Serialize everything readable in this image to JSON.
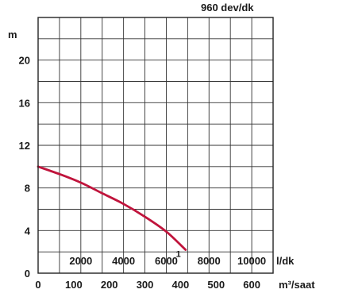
{
  "chart_data": {
    "type": "line",
    "title": "960 dev/dk",
    "ylabel": "m",
    "xlabel_primary": "l/dk",
    "xlabel_secondary": "m³/saat",
    "ylim": [
      0,
      24
    ],
    "xlim": [
      0,
      11000
    ],
    "yticks": [
      "0",
      "4",
      "8",
      "12",
      "16",
      "20"
    ],
    "yticks_values": [
      0,
      4,
      8,
      12,
      16,
      20
    ],
    "xticks_primary": [
      "2000",
      "4000",
      "6000",
      "8000",
      "10000"
    ],
    "xticks_primary_values": [
      2000,
      4000,
      6000,
      8000,
      10000
    ],
    "xticks_secondary": [
      "0",
      "100",
      "200",
      "300",
      "400",
      "500",
      "600"
    ],
    "xticks_secondary_values": [
      0,
      100,
      200,
      300,
      400,
      500,
      600
    ],
    "grid": true,
    "series": [
      {
        "name": "1",
        "color": "#c0143c",
        "x": [
          0,
          1000,
          2000,
          3000,
          4000,
          5000,
          6000,
          6900
        ],
        "y": [
          10.0,
          9.3,
          8.5,
          7.5,
          6.5,
          5.3,
          3.9,
          2.2
        ]
      }
    ]
  }
}
